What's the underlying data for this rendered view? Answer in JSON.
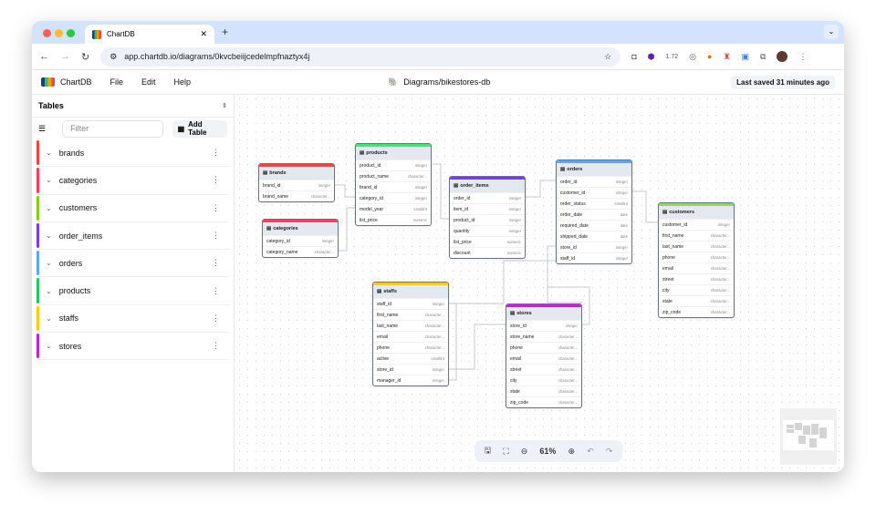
{
  "browser": {
    "tab_title": "ChartDB",
    "url": "app.chartdb.io/diagrams/0kvcbeiijcedelmpfnaztyx4j",
    "ext_badge": "1.72"
  },
  "app": {
    "name": "ChartDB",
    "menus": [
      "File",
      "Edit",
      "Help"
    ],
    "diagram_title": "Diagrams/bikestores-db",
    "last_saved": "Last saved 31 minutes ago"
  },
  "sidebar": {
    "title": "Tables",
    "filter_placeholder": "Filter",
    "add_table": "Add Table",
    "items": [
      {
        "name": "brands",
        "color": "#ef4444"
      },
      {
        "name": "categories",
        "color": "#f43f5e"
      },
      {
        "name": "customers",
        "color": "#84cc16"
      },
      {
        "name": "order_items",
        "color": "#7c3aed"
      },
      {
        "name": "orders",
        "color": "#60a5fa"
      },
      {
        "name": "products",
        "color": "#22c55e"
      },
      {
        "name": "staffs",
        "color": "#facc15"
      },
      {
        "name": "stores",
        "color": "#c026d3"
      }
    ]
  },
  "tables": [
    {
      "name": "brands",
      "color": "#ef4444",
      "columns": [
        [
          "brand_id",
          "integer"
        ],
        [
          "brand_name",
          "character..."
        ]
      ]
    },
    {
      "name": "products",
      "color": "#4ade80",
      "columns": [
        [
          "product_id",
          "integer"
        ],
        [
          "product_name",
          "character..."
        ],
        [
          "brand_id",
          "integer"
        ],
        [
          "category_id",
          "integer"
        ],
        [
          "model_year",
          "smallint"
        ],
        [
          "list_price",
          "numeric"
        ]
      ]
    },
    {
      "name": "categories",
      "color": "#f43f5e",
      "columns": [
        [
          "category_id",
          "integer"
        ],
        [
          "category_name",
          "character..."
        ]
      ]
    },
    {
      "name": "order_items",
      "color": "#7c3aed",
      "columns": [
        [
          "order_id",
          "integer"
        ],
        [
          "item_id",
          "integer"
        ],
        [
          "product_id",
          "integer"
        ],
        [
          "quantity",
          "integer"
        ],
        [
          "list_price",
          "numeric"
        ],
        [
          "discount",
          "numeric"
        ]
      ]
    },
    {
      "name": "orders",
      "color": "#60a5fa",
      "columns": [
        [
          "order_id",
          "integer"
        ],
        [
          "customer_id",
          "integer"
        ],
        [
          "order_status",
          "smallint"
        ],
        [
          "order_date",
          "date"
        ],
        [
          "required_date",
          "date"
        ],
        [
          "shipped_date",
          "date"
        ],
        [
          "store_id",
          "integer"
        ],
        [
          "staff_id",
          "integer"
        ]
      ]
    },
    {
      "name": "customers",
      "color": "#84e04c",
      "columns": [
        [
          "customer_id",
          "integer"
        ],
        [
          "first_name",
          "character..."
        ],
        [
          "last_name",
          "character..."
        ],
        [
          "phone",
          "character..."
        ],
        [
          "email",
          "character..."
        ],
        [
          "street",
          "character..."
        ],
        [
          "city",
          "character..."
        ],
        [
          "state",
          "character..."
        ],
        [
          "zip_code",
          "character..."
        ]
      ]
    },
    {
      "name": "staffs",
      "color": "#facc15",
      "columns": [
        [
          "staff_id",
          "integer"
        ],
        [
          "first_name",
          "character..."
        ],
        [
          "last_name",
          "character..."
        ],
        [
          "email",
          "character..."
        ],
        [
          "phone",
          "character..."
        ],
        [
          "active",
          "smallint"
        ],
        [
          "store_id",
          "integer"
        ],
        [
          "manager_id",
          "integer"
        ]
      ]
    },
    {
      "name": "stores",
      "color": "#c026d3",
      "columns": [
        [
          "store_id",
          "integer"
        ],
        [
          "store_name",
          "character..."
        ],
        [
          "phone",
          "character..."
        ],
        [
          "email",
          "character..."
        ],
        [
          "street",
          "character..."
        ],
        [
          "city",
          "character..."
        ],
        [
          "state",
          "character..."
        ],
        [
          "zip_code",
          "character..."
        ]
      ]
    }
  ],
  "toolbar": {
    "zoom": "61%"
  }
}
